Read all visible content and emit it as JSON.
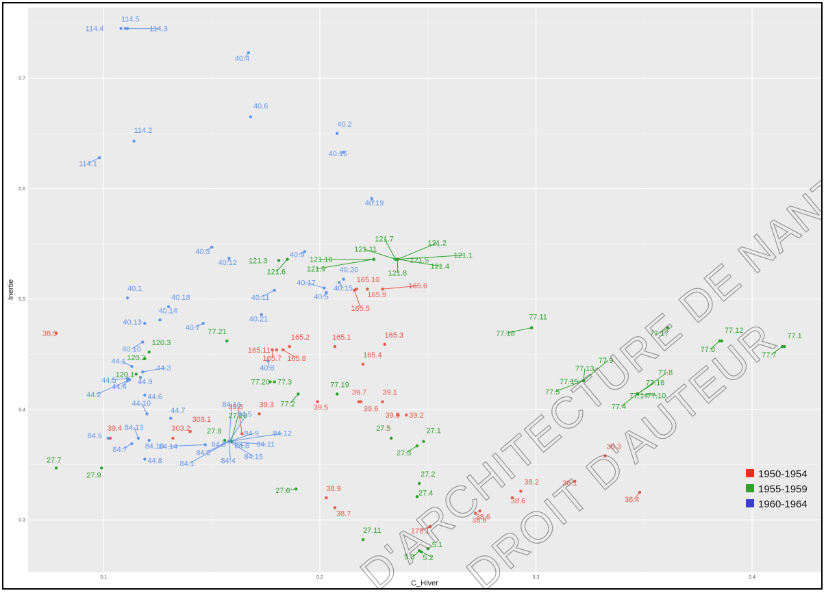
{
  "chart_data": {
    "type": "scatter",
    "xlabel": "C_Hiver",
    "ylabel": "Inertie",
    "xlim": [
      0.065,
      0.432
    ],
    "ylim": [
      0.253,
      0.764
    ],
    "x_ticks": [
      0.1,
      0.2,
      0.3,
      0.4
    ],
    "y_ticks": [
      0.3,
      0.4,
      0.5,
      0.6,
      0.7
    ],
    "x_tick_labels": [
      "0.1",
      "0.2",
      "0.3",
      "0.4"
    ],
    "y_tick_labels": [
      "0.3",
      "0.4",
      "0.5",
      "0.6",
      "0.7"
    ],
    "grid": true,
    "legend_position": "bottom-right",
    "series": [
      {
        "name": "1950-1954",
        "color": "#e8574a",
        "points": [
          {
            "label": "38.5",
            "x": 0.078,
            "y": 0.469
          },
          {
            "label": "39.4",
            "x": 0.103,
            "y": 0.374
          },
          {
            "label": "303.2",
            "x": 0.132,
            "y": 0.374
          },
          {
            "label": "303.1",
            "x": 0.14,
            "y": 0.38
          },
          {
            "label": "39.8",
            "x": 0.164,
            "y": 0.378
          },
          {
            "label": "39.3",
            "x": 0.172,
            "y": 0.396
          },
          {
            "label": "165.11",
            "x": 0.18,
            "y": 0.454
          },
          {
            "label": "165.7",
            "x": 0.178,
            "y": 0.454
          },
          {
            "label": "165.8",
            "x": 0.183,
            "y": 0.454
          },
          {
            "label": "165.2",
            "x": 0.186,
            "y": 0.457
          },
          {
            "label": "165.1",
            "x": 0.207,
            "y": 0.457
          },
          {
            "label": "165.3",
            "x": 0.23,
            "y": 0.459
          },
          {
            "label": "165.4",
            "x": 0.22,
            "y": 0.441
          },
          {
            "label": "165.10",
            "x": 0.217,
            "y": 0.509
          },
          {
            "label": "165.9",
            "x": 0.222,
            "y": 0.509
          },
          {
            "label": "165.5",
            "x": 0.216,
            "y": 0.508
          },
          {
            "label": "165.6",
            "x": 0.229,
            "y": 0.509
          },
          {
            "label": "39.5",
            "x": 0.199,
            "y": 0.407
          },
          {
            "label": "39.7",
            "x": 0.218,
            "y": 0.407
          },
          {
            "label": "39.6",
            "x": 0.219,
            "y": 0.407
          },
          {
            "label": "39.1",
            "x": 0.229,
            "y": 0.407
          },
          {
            "label": "39.9",
            "x": 0.236,
            "y": 0.395
          },
          {
            "label": "39.2",
            "x": 0.24,
            "y": 0.395
          },
          {
            "label": "38.9",
            "x": 0.203,
            "y": 0.32
          },
          {
            "label": "38.7",
            "x": 0.207,
            "y": 0.311
          },
          {
            "label": "175.1",
            "x": 0.251,
            "y": 0.294
          },
          {
            "label": "38.6",
            "x": 0.274,
            "y": 0.308
          },
          {
            "label": "38.8",
            "x": 0.272,
            "y": 0.306
          },
          {
            "label": "38.2",
            "x": 0.293,
            "y": 0.326
          },
          {
            "label": "38.6b",
            "display": "38.6",
            "x": 0.289,
            "y": 0.32
          },
          {
            "label": "38.1",
            "x": 0.318,
            "y": 0.335
          },
          {
            "label": "38.3",
            "x": 0.332,
            "y": 0.358
          },
          {
            "label": "38.4",
            "x": 0.348,
            "y": 0.325
          }
        ]
      },
      {
        "name": "1955-1959",
        "color": "#2ca02c",
        "points": [
          {
            "label": "27.7",
            "x": 0.078,
            "y": 0.347
          },
          {
            "label": "27.9",
            "x": 0.099,
            "y": 0.347
          },
          {
            "label": "120.3",
            "x": 0.121,
            "y": 0.452
          },
          {
            "label": "120.2",
            "x": 0.119,
            "y": 0.446
          },
          {
            "label": "120.1",
            "x": 0.115,
            "y": 0.432
          },
          {
            "label": "77.21",
            "x": 0.157,
            "y": 0.462
          },
          {
            "label": "77.20",
            "x": 0.177,
            "y": 0.425
          },
          {
            "label": "77.3",
            "x": 0.179,
            "y": 0.425
          },
          {
            "label": "77.2",
            "x": 0.19,
            "y": 0.414
          },
          {
            "label": "77.19",
            "x": 0.208,
            "y": 0.414
          },
          {
            "label": "27.8",
            "x": 0.156,
            "y": 0.372
          },
          {
            "label": "27.10",
            "x": 0.159,
            "y": 0.371
          },
          {
            "label": "27.6",
            "x": 0.189,
            "y": 0.328
          },
          {
            "label": "27.5",
            "x": 0.233,
            "y": 0.374
          },
          {
            "label": "27.1",
            "x": 0.248,
            "y": 0.371
          },
          {
            "label": "27.3",
            "x": 0.245,
            "y": 0.367
          },
          {
            "label": "27.2",
            "x": 0.246,
            "y": 0.333
          },
          {
            "label": "27.4",
            "x": 0.245,
            "y": 0.321
          },
          {
            "label": "27.11",
            "x": 0.22,
            "y": 0.282
          },
          {
            "label": "5.3",
            "x": 0.246,
            "y": 0.272
          },
          {
            "label": "5.2",
            "x": 0.247,
            "y": 0.271
          },
          {
            "label": "5.1",
            "x": 0.25,
            "y": 0.274
          },
          {
            "label": "121.3",
            "x": 0.181,
            "y": 0.535
          },
          {
            "label": "121.6",
            "x": 0.185,
            "y": 0.536
          },
          {
            "label": "121.9",
            "x": 0.225,
            "y": 0.536
          },
          {
            "label": "121.10",
            "x": 0.225,
            "y": 0.536
          },
          {
            "label": "121.11",
            "x": 0.235,
            "y": 0.536
          },
          {
            "label": "121.7",
            "x": 0.235,
            "y": 0.536
          },
          {
            "label": "121.2",
            "x": 0.236,
            "y": 0.536
          },
          {
            "label": "121.5",
            "x": 0.236,
            "y": 0.536
          },
          {
            "label": "121.1",
            "x": 0.236,
            "y": 0.536
          },
          {
            "label": "121.8",
            "x": 0.236,
            "y": 0.536
          },
          {
            "label": "121.4",
            "x": 0.236,
            "y": 0.536
          },
          {
            "label": "77.11",
            "x": 0.298,
            "y": 0.474
          },
          {
            "label": "77.18",
            "x": 0.298,
            "y": 0.474
          },
          {
            "label": "77.17",
            "x": 0.361,
            "y": 0.474
          },
          {
            "label": "77.12",
            "x": 0.386,
            "y": 0.462
          },
          {
            "label": "77.6",
            "x": 0.385,
            "y": 0.462
          },
          {
            "label": "77.1",
            "x": 0.415,
            "y": 0.457
          },
          {
            "label": "77.7",
            "x": 0.414,
            "y": 0.457
          },
          {
            "label": "77.9",
            "x": 0.322,
            "y": 0.426
          },
          {
            "label": "77.13",
            "x": 0.322,
            "y": 0.426
          },
          {
            "label": "77.15",
            "x": 0.322,
            "y": 0.426
          },
          {
            "label": "77.5",
            "x": 0.322,
            "y": 0.426
          },
          {
            "label": "77.8",
            "x": 0.347,
            "y": 0.414
          },
          {
            "label": "77.16",
            "x": 0.347,
            "y": 0.414
          },
          {
            "label": "77.14",
            "x": 0.347,
            "y": 0.414
          },
          {
            "label": "77.10",
            "x": 0.347,
            "y": 0.414
          },
          {
            "label": "77.4",
            "x": 0.347,
            "y": 0.414
          }
        ]
      },
      {
        "name": "1960-1964",
        "color": "#6495ed",
        "points": [
          {
            "label": "114.4",
            "x": 0.108,
            "y": 0.745
          },
          {
            "label": "114.5",
            "x": 0.11,
            "y": 0.745
          },
          {
            "label": "114.3",
            "x": 0.111,
            "y": 0.745
          },
          {
            "label": "114.2",
            "x": 0.114,
            "y": 0.643
          },
          {
            "label": "114.1",
            "x": 0.098,
            "y": 0.628
          },
          {
            "label": "40.4",
            "x": 0.167,
            "y": 0.723
          },
          {
            "label": "40.6",
            "x": 0.168,
            "y": 0.665
          },
          {
            "label": "40.2",
            "x": 0.208,
            "y": 0.65
          },
          {
            "label": "40.16",
            "x": 0.211,
            "y": 0.633
          },
          {
            "label": "40.19",
            "x": 0.224,
            "y": 0.591
          },
          {
            "label": "40.3",
            "x": 0.15,
            "y": 0.547
          },
          {
            "label": "40.12",
            "x": 0.158,
            "y": 0.537
          },
          {
            "label": "40.9",
            "x": 0.193,
            "y": 0.543
          },
          {
            "label": "40.20",
            "x": 0.211,
            "y": 0.518
          },
          {
            "label": "40.17",
            "x": 0.202,
            "y": 0.51
          },
          {
            "label": "40.15",
            "x": 0.209,
            "y": 0.515
          },
          {
            "label": "40.5",
            "x": 0.203,
            "y": 0.506
          },
          {
            "label": "40.11",
            "x": 0.179,
            "y": 0.508
          },
          {
            "label": "40.21",
            "x": 0.173,
            "y": 0.486
          },
          {
            "label": "40.1",
            "x": 0.111,
            "y": 0.501
          },
          {
            "label": "40.18",
            "x": 0.13,
            "y": 0.493
          },
          {
            "label": "40.14",
            "x": 0.126,
            "y": 0.481
          },
          {
            "label": "40.13",
            "x": 0.119,
            "y": 0.478
          },
          {
            "label": "40.10",
            "x": 0.118,
            "y": 0.461
          },
          {
            "label": "40.7",
            "x": 0.146,
            "y": 0.478
          },
          {
            "label": "40.8",
            "x": 0.176,
            "y": 0.444
          },
          {
            "label": "44.1",
            "x": 0.113,
            "y": 0.439
          },
          {
            "label": "44.3",
            "x": 0.118,
            "y": 0.434
          },
          {
            "label": "44.9",
            "x": 0.117,
            "y": 0.429
          },
          {
            "label": "44.5",
            "x": 0.111,
            "y": 0.428
          },
          {
            "label": "44.4",
            "x": 0.112,
            "y": 0.427
          },
          {
            "label": "44.2",
            "x": 0.111,
            "y": 0.426
          },
          {
            "label": "44.6",
            "x": 0.119,
            "y": 0.413
          },
          {
            "label": "44.10",
            "x": 0.12,
            "y": 0.396
          },
          {
            "label": "44.7",
            "x": 0.131,
            "y": 0.392
          },
          {
            "label": "84.6",
            "x": 0.102,
            "y": 0.374
          },
          {
            "label": "84.13",
            "x": 0.116,
            "y": 0.374
          },
          {
            "label": "84.7",
            "x": 0.113,
            "y": 0.369
          },
          {
            "label": "84.10",
            "x": 0.121,
            "y": 0.372
          },
          {
            "label": "84.8b",
            "display": "44.8",
            "x": 0.119,
            "y": 0.355
          },
          {
            "label": "84.16",
            "x": 0.158,
            "y": 0.371
          },
          {
            "label": "84.5",
            "x": 0.158,
            "y": 0.371
          },
          {
            "label": "84.9",
            "x": 0.158,
            "y": 0.371
          },
          {
            "label": "84.12",
            "x": 0.158,
            "y": 0.371
          },
          {
            "label": "84.14",
            "x": 0.147,
            "y": 0.368
          },
          {
            "label": "84.3",
            "x": 0.158,
            "y": 0.371
          },
          {
            "label": "84.8",
            "x": 0.158,
            "y": 0.371
          },
          {
            "label": "84.11",
            "x": 0.158,
            "y": 0.371
          },
          {
            "label": "84.2",
            "x": 0.158,
            "y": 0.371
          },
          {
            "label": "84.15",
            "x": 0.158,
            "y": 0.371
          },
          {
            "label": "84.4",
            "x": 0.158,
            "y": 0.371
          },
          {
            "label": "84.1",
            "x": 0.158,
            "y": 0.371
          }
        ]
      }
    ]
  },
  "legend": [
    {
      "label": "1950-1954",
      "color": "#ff2a1a"
    },
    {
      "label": "1955-1959",
      "color": "#33a02c"
    },
    {
      "label": "1960-1964",
      "color": "#3b3bd6"
    }
  ],
  "watermark": {
    "line1": "D'ARCHITECTURE DE NANTES",
    "line2": "DROIT D'AUTEUR"
  }
}
